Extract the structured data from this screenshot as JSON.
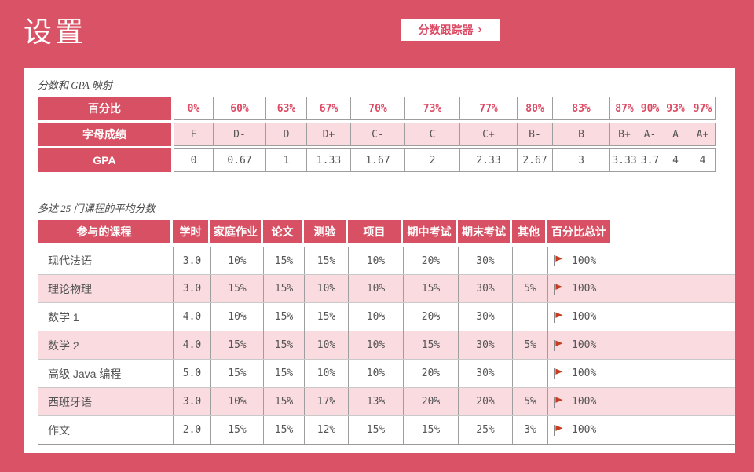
{
  "header": {
    "title": "设置",
    "tracker_button": {
      "label": "分数跟踪器",
      "chevron": "›"
    }
  },
  "gpa_mapping": {
    "title": "分数和 GPA 映射",
    "rows": [
      {
        "header": "百分比",
        "values": [
          "0%",
          "60%",
          "63%",
          "67%",
          "70%",
          "73%",
          "77%",
          "80%",
          "83%",
          "87%",
          "90%",
          "93%",
          "97%"
        ]
      },
      {
        "header": "字母成绩",
        "values": [
          "F",
          "D-",
          "D",
          "D+",
          "C-",
          "C",
          "C+",
          "B-",
          "B",
          "B+",
          "A-",
          "A",
          "A+"
        ]
      },
      {
        "header": "GPA",
        "values": [
          "0",
          "0.67",
          "1",
          "1.33",
          "1.67",
          "2",
          "2.33",
          "2.67",
          "3",
          "3.33",
          "3.7",
          "4",
          "4"
        ]
      }
    ]
  },
  "courses": {
    "title": "多达 25 门课程的平均分数",
    "column_headers": [
      "参与的课程",
      "学时",
      "家庭作业",
      "论文",
      "测验",
      "项目",
      "期中考试",
      "期末考试",
      "其他",
      "百分比总计"
    ],
    "rows": [
      {
        "course": "现代法语",
        "credits": "3.0",
        "homework": "10%",
        "essay": "15%",
        "quiz": "15%",
        "project": "10%",
        "midterm": "20%",
        "final": "30%",
        "other": "",
        "total": "100%"
      },
      {
        "course": "理论物理",
        "credits": "3.0",
        "homework": "15%",
        "essay": "15%",
        "quiz": "10%",
        "project": "10%",
        "midterm": "15%",
        "final": "30%",
        "other": "5%",
        "total": "100%"
      },
      {
        "course": "数学 1",
        "credits": "4.0",
        "homework": "10%",
        "essay": "15%",
        "quiz": "15%",
        "project": "10%",
        "midterm": "20%",
        "final": "30%",
        "other": "",
        "total": "100%"
      },
      {
        "course": "数学 2",
        "credits": "4.0",
        "homework": "15%",
        "essay": "15%",
        "quiz": "10%",
        "project": "10%",
        "midterm": "15%",
        "final": "30%",
        "other": "5%",
        "total": "100%"
      },
      {
        "course": "高级 Java 编程",
        "credits": "5.0",
        "homework": "15%",
        "essay": "15%",
        "quiz": "10%",
        "project": "10%",
        "midterm": "20%",
        "final": "30%",
        "other": "",
        "total": "100%"
      },
      {
        "course": "西班牙语",
        "credits": "3.0",
        "homework": "10%",
        "essay": "15%",
        "quiz": "17%",
        "project": "13%",
        "midterm": "20%",
        "final": "20%",
        "other": "5%",
        "total": "100%"
      },
      {
        "course": "作文",
        "credits": "2.0",
        "homework": "15%",
        "essay": "15%",
        "quiz": "12%",
        "project": "15%",
        "midterm": "15%",
        "final": "25%",
        "other": "3%",
        "total": "100%"
      }
    ]
  },
  "colors": {
    "page_background": "#da5266",
    "table_header": "#d85063",
    "row_highlight": "#f9dbe0",
    "accent_text": "#dc4a64",
    "flag": "#c83c22",
    "flag_pole": "#8a8a8a"
  }
}
